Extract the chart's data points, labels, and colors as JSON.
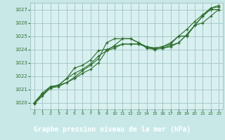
{
  "title": "Graphe pression niveau de la mer (hPa)",
  "bg_color": "#c8e8e8",
  "plot_bg_color": "#d8f0f0",
  "title_bg_color": "#2d6e2d",
  "title_text_color": "#ffffff",
  "line_color": "#2d6e2d",
  "grid_color": "#a8c8c8",
  "xlim": [
    -0.5,
    23.5
  ],
  "ylim": [
    1019.5,
    1027.5
  ],
  "yticks": [
    1020,
    1021,
    1022,
    1023,
    1024,
    1025,
    1026,
    1027
  ],
  "xticks": [
    0,
    1,
    2,
    3,
    4,
    5,
    6,
    7,
    8,
    9,
    10,
    11,
    12,
    13,
    14,
    15,
    16,
    17,
    18,
    19,
    20,
    21,
    22,
    23
  ],
  "series": [
    [
      1020.0,
      1020.7,
      1021.2,
      1021.3,
      1021.8,
      1022.6,
      1022.8,
      1023.2,
      1023.9,
      1024.0,
      1024.2,
      1024.4,
      1024.4,
      1024.4,
      1024.2,
      1024.1,
      1024.2,
      1024.5,
      1025.0,
      1025.5,
      1026.1,
      1026.6,
      1027.1,
      1027.2
    ],
    [
      1020.0,
      1020.7,
      1021.2,
      1021.3,
      1021.8,
      1022.2,
      1022.5,
      1022.9,
      1023.5,
      1023.9,
      1024.1,
      1024.4,
      1024.4,
      1024.4,
      1024.2,
      1024.1,
      1024.2,
      1024.4,
      1025.0,
      1025.0,
      1025.8,
      1026.0,
      1026.5,
      1027.0
    ],
    [
      1019.9,
      1020.6,
      1021.1,
      1021.3,
      1021.5,
      1021.8,
      1022.2,
      1022.5,
      1023.0,
      1023.9,
      1024.3,
      1024.8,
      1024.8,
      1024.5,
      1024.1,
      1024.0,
      1024.1,
      1024.3,
      1024.5,
      1025.1,
      1025.8,
      1026.5,
      1027.0,
      1027.0
    ],
    [
      1019.9,
      1020.5,
      1021.1,
      1021.2,
      1021.5,
      1021.9,
      1022.4,
      1022.8,
      1023.3,
      1024.5,
      1024.8,
      1024.8,
      1024.8,
      1024.5,
      1024.2,
      1024.0,
      1024.1,
      1024.2,
      1024.5,
      1025.1,
      1025.8,
      1026.5,
      1027.1,
      1027.3
    ]
  ]
}
